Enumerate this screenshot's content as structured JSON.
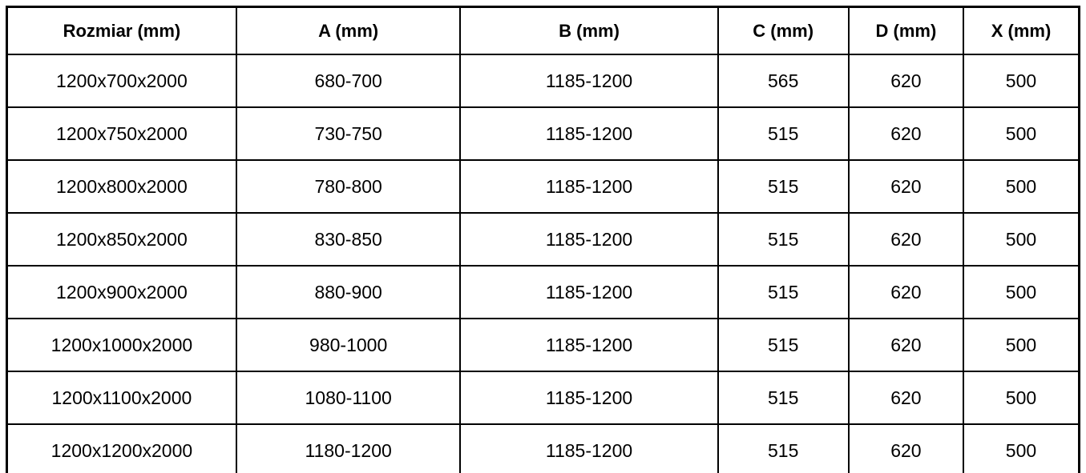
{
  "colors": {
    "border": "#000000",
    "text": "#000000",
    "background": "#ffffff"
  },
  "table": {
    "columns": [
      "Rozmiar (mm)",
      "A (mm)",
      "B (mm)",
      "C (mm)",
      "D (mm)",
      "X (mm)"
    ],
    "rows": [
      [
        "1200x700x2000",
        "680-700",
        "1185-1200",
        "565",
        "620",
        "500"
      ],
      [
        "1200x750x2000",
        "730-750",
        "1185-1200",
        "515",
        "620",
        "500"
      ],
      [
        "1200x800x2000",
        "780-800",
        "1185-1200",
        "515",
        "620",
        "500"
      ],
      [
        "1200x850x2000",
        "830-850",
        "1185-1200",
        "515",
        "620",
        "500"
      ],
      [
        "1200x900x2000",
        "880-900",
        "1185-1200",
        "515",
        "620",
        "500"
      ],
      [
        "1200x1000x2000",
        "980-1000",
        "1185-1200",
        "515",
        "620",
        "500"
      ],
      [
        "1200x1100x2000",
        "1080-1100",
        "1185-1200",
        "515",
        "620",
        "500"
      ],
      [
        "1200x1200x2000",
        "1180-1200",
        "1185-1200",
        "515",
        "620",
        "500"
      ]
    ]
  }
}
